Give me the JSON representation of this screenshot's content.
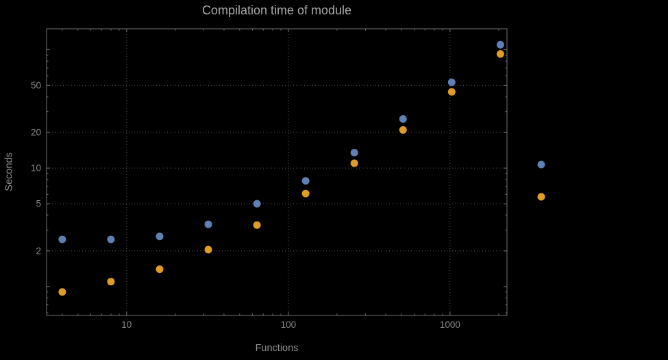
{
  "window": {
    "background": "#000000"
  },
  "colors": {
    "background": "#000000",
    "frame": "#757575",
    "grid": "#5a5a5a",
    "title_text": "#a8a8a8",
    "axis_label_text": "#8f8f8f",
    "tick_label_text": "#8a8a8a",
    "series_blue": "#5e81b5",
    "series_orange": "#e09c24"
  },
  "chart_data": {
    "type": "scatter",
    "title": "Compilation time of module",
    "xlabel": "Functions",
    "ylabel": "Seconds",
    "x_scale": "log",
    "y_scale": "log",
    "xlim": [
      3.2,
      2250
    ],
    "ylim": [
      0.57,
      150
    ],
    "x_ticks": [
      10,
      100,
      1000
    ],
    "y_ticks": [
      2,
      5,
      10,
      20,
      50
    ],
    "x_gridlines": [
      10,
      100,
      1000
    ],
    "y_gridlines": [
      2,
      5,
      10,
      20,
      50
    ],
    "grid": true,
    "legend_position": "right",
    "x": [
      4,
      8,
      16,
      32,
      64,
      128,
      256,
      512,
      1024,
      2048
    ],
    "series": [
      {
        "label": "",
        "color": "#5e81b5",
        "values": [
          2.5,
          2.5,
          2.65,
          3.35,
          5.0,
          7.8,
          13.5,
          26,
          53,
          110
        ]
      },
      {
        "label": "",
        "color": "#e09c24",
        "values": [
          0.9,
          1.1,
          1.4,
          2.05,
          3.3,
          6.1,
          11,
          21,
          44,
          92
        ]
      }
    ],
    "legend": {
      "entries": [
        {
          "label": "",
          "color": "#5e81b5"
        },
        {
          "label": "",
          "color": "#e09c24"
        }
      ]
    }
  }
}
